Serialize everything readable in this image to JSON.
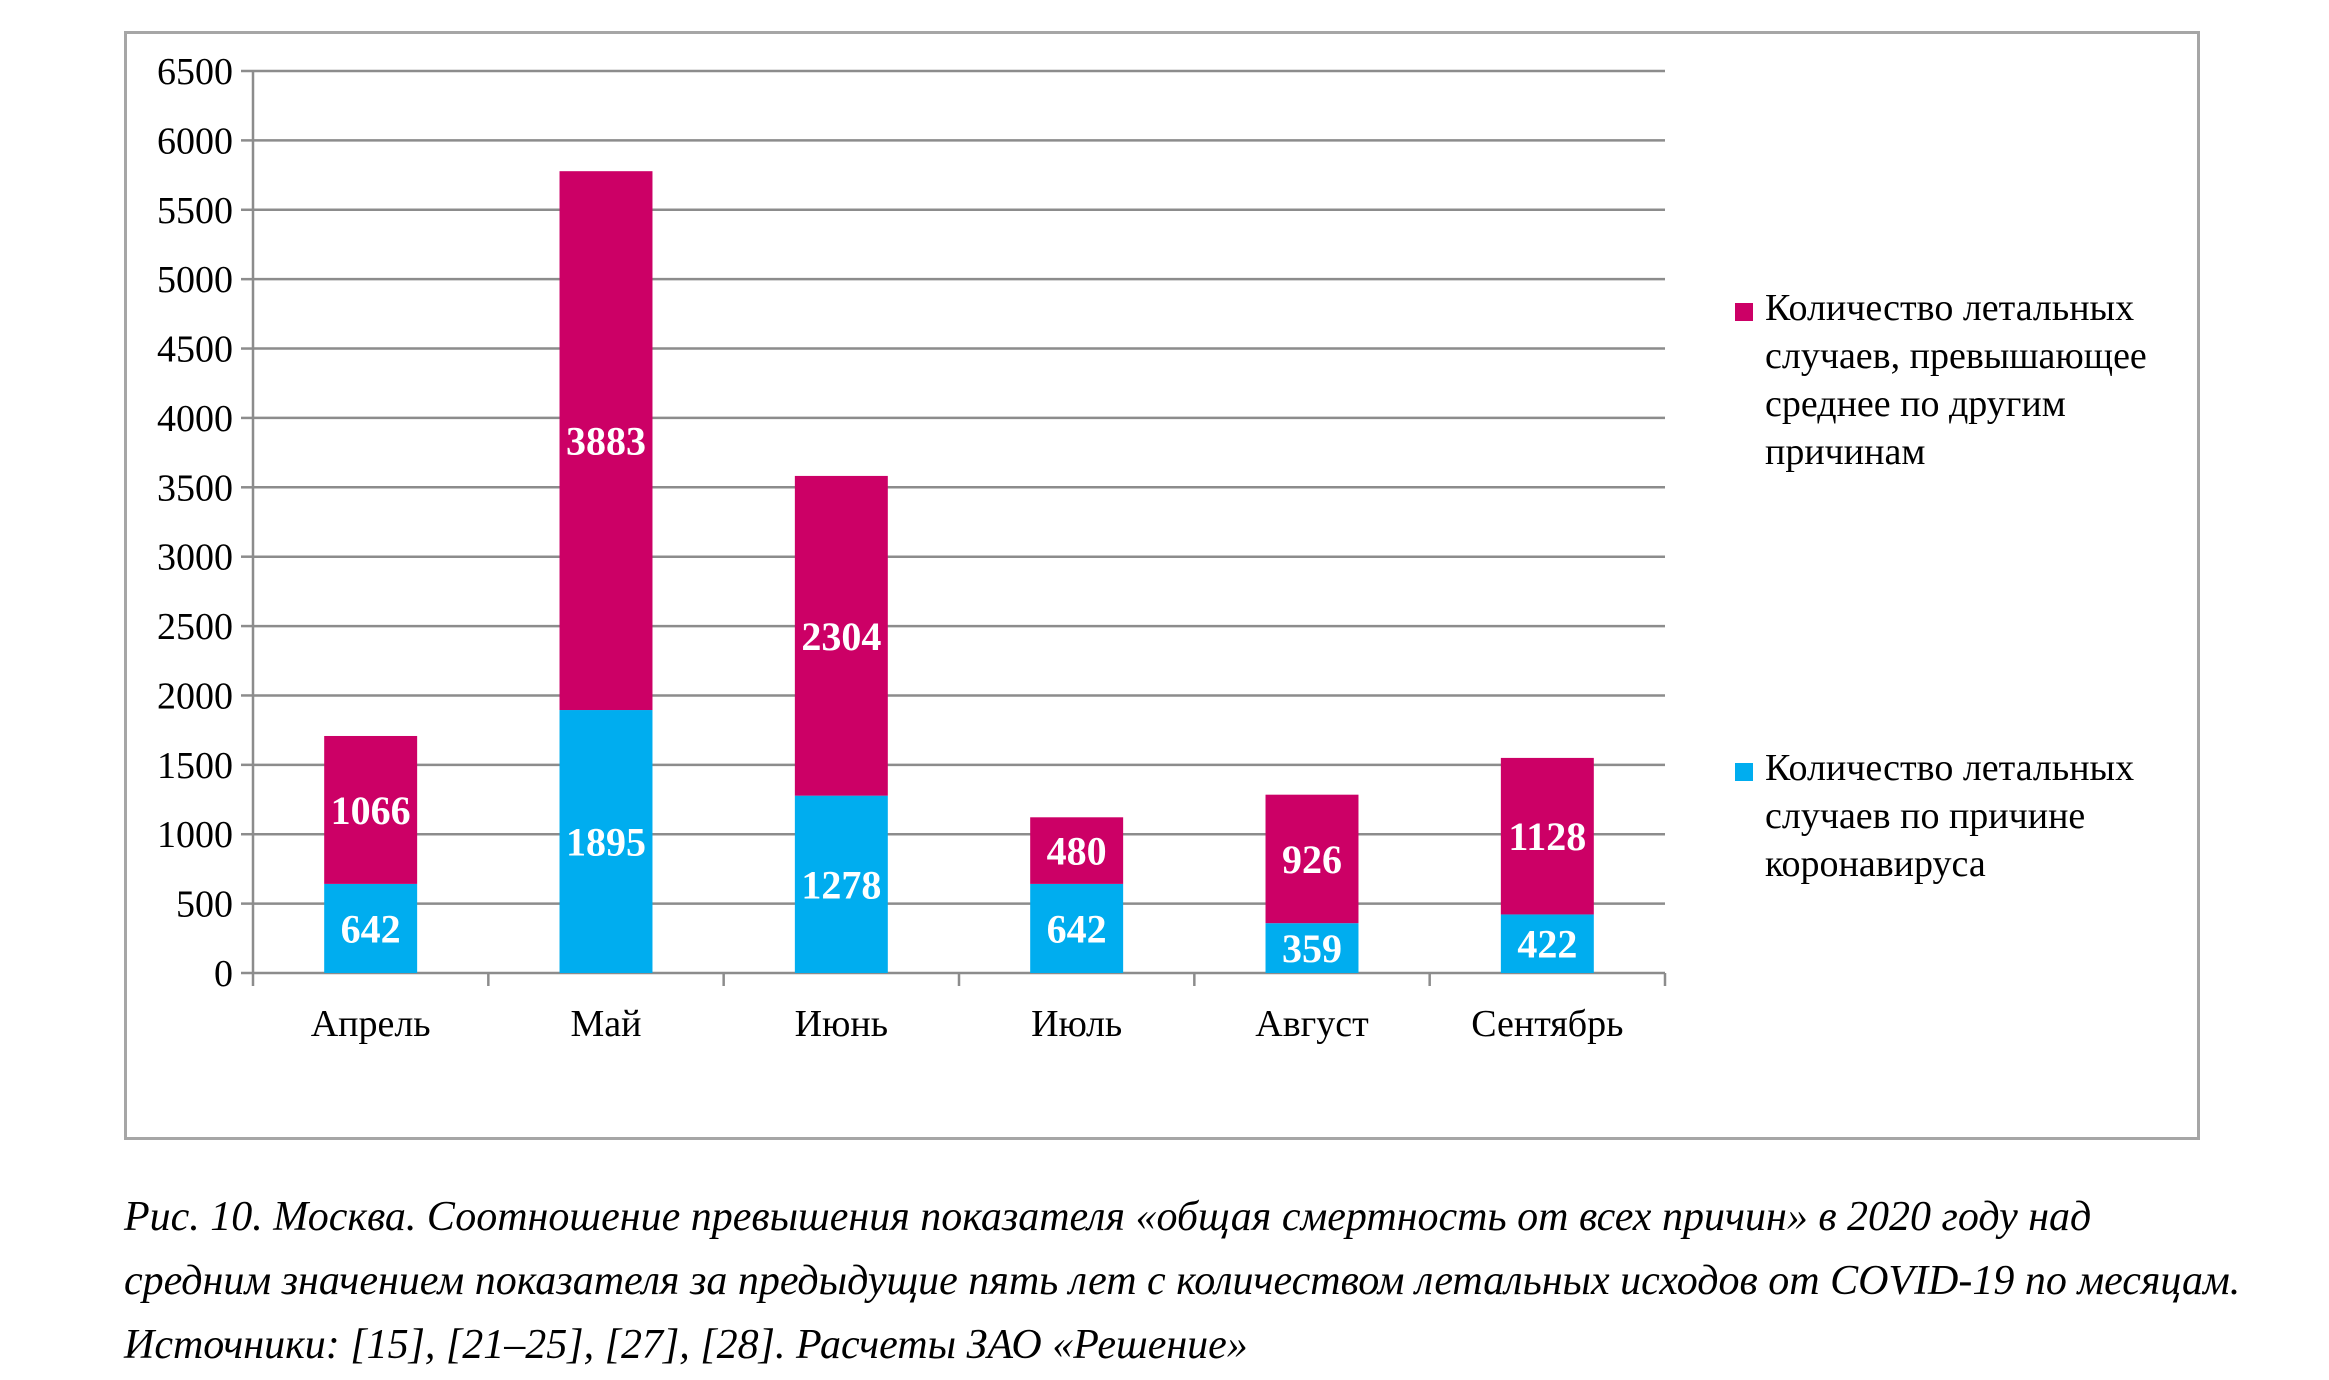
{
  "chart_data": {
    "type": "bar",
    "stacked": true,
    "categories": [
      "Апрель",
      "Май",
      "Июнь",
      "Июль",
      "Август",
      "Сентябрь"
    ],
    "series": [
      {
        "name": "Количество летальных случаев по причине коронавируса",
        "values": [
          642,
          1895,
          1278,
          642,
          359,
          422
        ],
        "color": "#00adef"
      },
      {
        "name": "Количество летальных случаев, превышающее среднее по другим причинам",
        "values": [
          1066,
          3883,
          2304,
          480,
          926,
          1128
        ],
        "color": "#cc0066"
      }
    ],
    "ylim": [
      0,
      6500
    ],
    "yticks": [
      0,
      500,
      1000,
      1500,
      2000,
      2500,
      3000,
      3500,
      4000,
      4500,
      5000,
      5500,
      6000,
      6500
    ],
    "grid": true,
    "legend_position": "right",
    "legend_lines": [
      [
        "Количество летальных",
        "случаев, превышающее",
        "среднее по другим",
        "причинам"
      ],
      [
        "Количество летальных",
        "случаев по причине",
        "коронавируса"
      ]
    ]
  },
  "caption": "Рис. 10. Москва. Соотношение превышения показателя «общая смертность от всех причин» в 2020 году над средним значением показателя за предыдущие пять лет с количеством летальных исходов от COVID-19 по месяцам. Источники: [15], [21–25], [27], [28]. Расчеты ЗАО «Решение»"
}
